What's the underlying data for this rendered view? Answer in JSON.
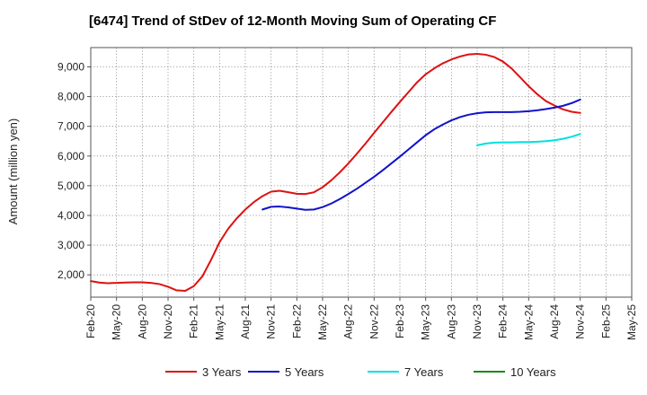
{
  "chart_data": {
    "type": "line",
    "title": "[6474]  Trend of StDev of 12-Month Moving Sum of Operating CF",
    "xlabel": "",
    "ylabel": "Amount (million yen)",
    "ylim": [
      1250,
      9650
    ],
    "y_ticks": [
      2000,
      3000,
      4000,
      5000,
      6000,
      7000,
      8000,
      9000
    ],
    "y_tick_labels": [
      "2,000",
      "3,000",
      "4,000",
      "5,000",
      "6,000",
      "7,000",
      "8,000",
      "9,000"
    ],
    "x_tick_labels": [
      "Feb-20",
      "May-20",
      "Aug-20",
      "Nov-20",
      "Feb-21",
      "May-21",
      "Aug-21",
      "Nov-21",
      "Feb-22",
      "May-22",
      "Aug-22",
      "Nov-22",
      "Feb-23",
      "May-23",
      "Aug-23",
      "Nov-23",
      "Feb-24",
      "May-24",
      "Aug-24",
      "Nov-24",
      "Feb-25",
      "May-25"
    ],
    "x_start": "2020-02",
    "x_end": "2025-05",
    "grid": true,
    "legend_position": "bottom",
    "series": [
      {
        "name": "3 Years",
        "color": "#dd1111",
        "x": [
          "2020-02",
          "2020-03",
          "2020-04",
          "2020-05",
          "2020-06",
          "2020-07",
          "2020-08",
          "2020-09",
          "2020-10",
          "2020-11",
          "2020-12",
          "2021-01",
          "2021-02",
          "2021-03",
          "2021-04",
          "2021-05",
          "2021-06",
          "2021-07",
          "2021-08",
          "2021-09",
          "2021-10",
          "2021-11",
          "2021-12",
          "2022-01",
          "2022-02",
          "2022-03",
          "2022-04",
          "2022-05",
          "2022-06",
          "2022-07",
          "2022-08",
          "2022-09",
          "2022-10",
          "2022-11",
          "2022-12",
          "2023-01",
          "2023-02",
          "2023-03",
          "2023-04",
          "2023-05",
          "2023-06",
          "2023-07",
          "2023-08",
          "2023-09",
          "2023-10",
          "2023-11",
          "2023-12",
          "2024-01",
          "2024-02",
          "2024-03",
          "2024-04",
          "2024-05",
          "2024-06",
          "2024-07",
          "2024-08",
          "2024-09",
          "2024-10",
          "2024-11"
        ],
        "values": [
          1790,
          1740,
          1720,
          1730,
          1740,
          1750,
          1750,
          1730,
          1690,
          1600,
          1480,
          1460,
          1620,
          1950,
          2500,
          3100,
          3550,
          3900,
          4200,
          4450,
          4650,
          4800,
          4830,
          4780,
          4730,
          4720,
          4780,
          4950,
          5180,
          5450,
          5750,
          6080,
          6420,
          6780,
          7130,
          7480,
          7820,
          8150,
          8480,
          8750,
          8950,
          9120,
          9250,
          9350,
          9420,
          9440,
          9410,
          9330,
          9180,
          8950,
          8650,
          8350,
          8080,
          7850,
          7700,
          7570,
          7490,
          7450
        ]
      },
      {
        "name": "5 Years",
        "color": "#1111cc",
        "x": [
          "2021-10",
          "2021-11",
          "2021-12",
          "2022-01",
          "2022-02",
          "2022-03",
          "2022-04",
          "2022-05",
          "2022-06",
          "2022-07",
          "2022-08",
          "2022-09",
          "2022-10",
          "2022-11",
          "2022-12",
          "2023-01",
          "2023-02",
          "2023-03",
          "2023-04",
          "2023-05",
          "2023-06",
          "2023-07",
          "2023-08",
          "2023-09",
          "2023-10",
          "2023-11",
          "2023-12",
          "2024-01",
          "2024-02",
          "2024-03",
          "2024-04",
          "2024-05",
          "2024-06",
          "2024-07",
          "2024-08",
          "2024-09",
          "2024-10",
          "2024-11"
        ],
        "values": [
          4200,
          4290,
          4300,
          4270,
          4230,
          4190,
          4200,
          4280,
          4400,
          4550,
          4720,
          4900,
          5100,
          5300,
          5520,
          5750,
          5980,
          6220,
          6460,
          6700,
          6900,
          7060,
          7200,
          7310,
          7390,
          7440,
          7470,
          7480,
          7480,
          7480,
          7490,
          7510,
          7540,
          7580,
          7630,
          7690,
          7780,
          7900
        ]
      },
      {
        "name": "7 Years",
        "color": "#00e0e0",
        "x": [
          "2023-11",
          "2023-12",
          "2024-01",
          "2024-02",
          "2024-03",
          "2024-04",
          "2024-05",
          "2024-06",
          "2024-07",
          "2024-08",
          "2024-09",
          "2024-10",
          "2024-11"
        ],
        "values": [
          6360,
          6420,
          6450,
          6460,
          6460,
          6470,
          6470,
          6480,
          6500,
          6530,
          6580,
          6650,
          6740
        ]
      },
      {
        "name": "10 Years",
        "color": "#1a8a1a",
        "x": [],
        "values": []
      }
    ]
  }
}
